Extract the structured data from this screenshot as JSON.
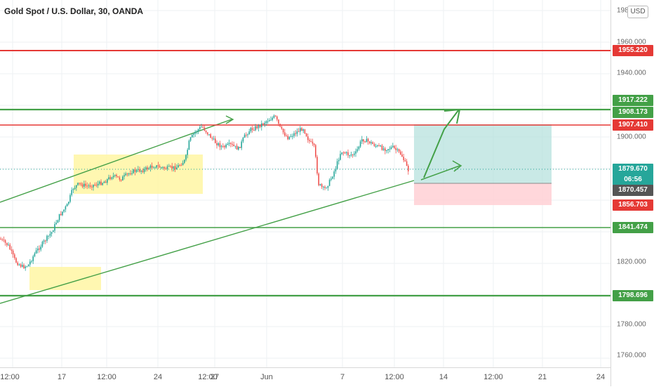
{
  "title": "Gold Spot / U.S. Dollar, 30, OANDA",
  "currency_button": "USD",
  "colors": {
    "red_line": "#e53935",
    "green_line": "#43a047",
    "yellow_box": "#fff59d",
    "target_zone": "#b2dfdb",
    "stop_zone": "#ffcdd2",
    "candle_up": "#26a69a",
    "candle_down": "#ef5350"
  },
  "price_axis": {
    "ticks": [
      "1980.000",
      "1960.000",
      "1940.000",
      "1900.000",
      "1820.000",
      "1800.000",
      "1780.000",
      "1760.000"
    ],
    "badges": [
      {
        "label": "1955.220",
        "color": "#e53935"
      },
      {
        "label": "1917.222",
        "color": "#43a047"
      },
      {
        "label": "1908.173",
        "color": "#43a047"
      },
      {
        "label": "1907.410",
        "color": "#e53935"
      },
      {
        "label": "1879.670",
        "color": "#26a69a"
      },
      {
        "label": "06:56",
        "color": "#26a69a"
      },
      {
        "label": "1870.457",
        "color": "#555555"
      },
      {
        "label": "1856.703",
        "color": "#e53935"
      },
      {
        "label": "1841.474",
        "color": "#43a047"
      },
      {
        "label": "1798.696",
        "color": "#43a047"
      }
    ]
  },
  "time_axis": {
    "ticks": [
      "12:00",
      "17",
      "12:00",
      "24",
      "12:00",
      "27",
      "Jun",
      "7",
      "12:00",
      "14",
      "12:00",
      "21",
      "24"
    ]
  },
  "chart_data": {
    "type": "candlestick",
    "symbol": "Gold Spot / U.S. Dollar",
    "interval": "30",
    "source": "OANDA",
    "y_unit": "USD",
    "horizontal_levels": [
      {
        "price": 1955.22,
        "color": "red"
      },
      {
        "price": 1908.173,
        "color": "green"
      },
      {
        "price": 1907.41,
        "color": "red"
      },
      {
        "price": 1841.474,
        "color": "green"
      },
      {
        "price": 1798.696,
        "color": "green"
      }
    ],
    "position": {
      "target": 1907.41,
      "entry": 1870.457,
      "stop": 1856.703
    },
    "last_price": 1879.67,
    "countdown": "06:56"
  }
}
